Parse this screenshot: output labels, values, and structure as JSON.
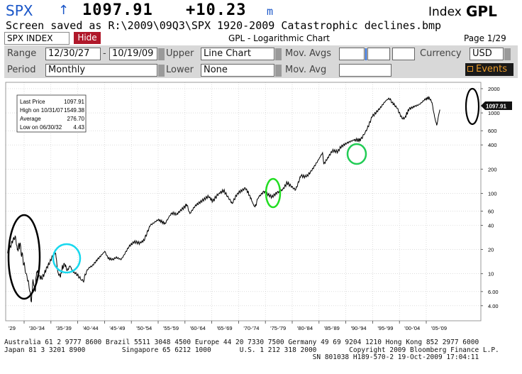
{
  "titlebar": {
    "ticker": "SPX",
    "arrow": "↑",
    "price": "1097.91",
    "change": "+10.23",
    "unit": "m",
    "index_label": "Index",
    "function": "GPL"
  },
  "save_line": "Screen saved as R:\\2009\\09Q3\\SPX 1920-2009 Catastrophic declines.bmp",
  "header": {
    "security": "SPX INDEX",
    "hide_label": "Hide",
    "title": "GPL - Logarithmic Chart",
    "page": "Page 1/29"
  },
  "controls": {
    "range_label": "Range",
    "range_start": "12/30/27",
    "range_sep": "-",
    "range_end": "10/19/09",
    "period_label": "Period",
    "period_value": "Monthly",
    "upper_label": "Upper",
    "upper_value": "Line Chart",
    "lower_label": "Lower",
    "lower_value": "None",
    "mov_avgs_label": "Mov. Avgs",
    "mov_avg_label": "Mov. Avg",
    "currency_label": "Currency",
    "currency_value": "USD",
    "events_label": "Events"
  },
  "stats": {
    "last_price_label": "Last Price",
    "last_price": "1097.91",
    "high_label": "High on  10/31/07",
    "high": "1549.38",
    "average_label": "Average",
    "average": "276.70",
    "low_label": "Low on  06/30/32",
    "low": "4.43"
  },
  "last_price_flag": "1097.91",
  "chart_data": {
    "type": "line",
    "title": "",
    "xlabel": "",
    "ylabel": "",
    "y_scale": "log",
    "ylim": [
      2.6,
      2400
    ],
    "y_ticks": [
      "2000",
      "1000",
      "600",
      "400",
      "200",
      "100",
      "60",
      "40",
      "20",
      "10",
      "6.00",
      "4.00"
    ],
    "x_ticks": [
      "'29",
      "'30-'34",
      "'35-'39",
      "'40-'44",
      "'45-'49",
      "'50-'54",
      "'55-'59",
      "'60-'64",
      "'65-'69",
      "'70-'74",
      "'75-'79",
      "'80-'84",
      "'85-'89",
      "'90-'94",
      "'95-'99",
      "'00-'04",
      "'05-'09"
    ],
    "series": [
      {
        "x": [
          1928.0,
          1929.0,
          1929.5,
          1929.83,
          1930.3,
          1930.9,
          1931.5,
          1932.0,
          1932.5,
          1932.8,
          1933.2,
          1933.5,
          1934.0,
          1934.5,
          1935.0,
          1935.5,
          1936.0,
          1936.5,
          1937.1,
          1937.5,
          1938.0,
          1938.3,
          1938.8,
          1939.3,
          1939.8,
          1940.4,
          1941.0,
          1941.6,
          1942.3,
          1943.0,
          1943.5,
          1944.0,
          1945.0,
          1946.4,
          1947.0,
          1948.0,
          1948.5,
          1949.5,
          1950.0,
          1951.0,
          1952.0,
          1953.0,
          1953.8,
          1955.0,
          1956.5,
          1957.8,
          1959.0,
          1960.0,
          1961.9,
          1962.5,
          1963.5,
          1966.0,
          1966.8,
          1968.0,
          1968.9,
          1970.5,
          1971.5,
          1973.0,
          1973.8,
          1974.6,
          1974.8,
          1975.5,
          1976.5,
          1978.0,
          1979.0,
          1980.0,
          1980.9,
          1982.5,
          1983.5,
          1984.5,
          1985.5,
          1986.5,
          1987.6,
          1987.85,
          1988.5,
          1989.5,
          1990.5,
          1991.0,
          1992.0,
          1993.5,
          1994.8,
          1996.0,
          1997.0,
          1998.5,
          1999.5,
          2000.2,
          2000.8,
          2001.7,
          2002.7,
          2003.2,
          2004.0,
          2005.0,
          2006.0,
          2007.0,
          2007.8,
          2008.3,
          2008.8,
          2009.2,
          2009.8
        ],
        "values": [
          18.0,
          26.0,
          29.0,
          20.0,
          23.0,
          15.0,
          10.0,
          7.5,
          4.43,
          8.5,
          6.0,
          10.5,
          9.5,
          8.5,
          10.5,
          12.0,
          14.0,
          16.5,
          18.0,
          10.5,
          9.0,
          12.0,
          13.0,
          11.0,
          12.5,
          10.5,
          10.0,
          9.0,
          8.0,
          11.0,
          12.0,
          12.5,
          15.0,
          19.0,
          15.5,
          15.0,
          16.0,
          15.0,
          17.0,
          22.0,
          25.0,
          24.0,
          26.0,
          40.0,
          47.0,
          42.0,
          57.0,
          55.0,
          72.0,
          56.0,
          70.0,
          92.0,
          80.0,
          100.0,
          108.0,
          75.0,
          100.0,
          116.0,
          95.0,
          70.0,
          68.0,
          90.0,
          105.0,
          90.0,
          102.0,
          110.0,
          135.0,
          110.0,
          165.0,
          160.0,
          190.0,
          240.0,
          320.0,
          230.0,
          270.0,
          340.0,
          330.0,
          375.0,
          415.0,
          460.0,
          460.0,
          620.0,
          900.0,
          1150.0,
          1400.0,
          1520.0,
          1350.0,
          1150.0,
          840.0,
          880.0,
          1120.0,
          1200.0,
          1280.0,
          1480.0,
          1549.38,
          1350.0,
          900.0,
          700.0,
          1097.91
        ]
      }
    ],
    "annotations": [
      {
        "label": "",
        "shape": "ellipse",
        "color": "#000000",
        "period": "1929-1932"
      },
      {
        "label": "",
        "shape": "ellipse",
        "color": "#18d8ee",
        "period": "1937-1938"
      },
      {
        "label": "",
        "shape": "ellipse",
        "color": "#22dd22",
        "period": "1973-1974"
      },
      {
        "label": "",
        "shape": "ellipse",
        "color": "#22cc55",
        "period": "1987"
      },
      {
        "label": "",
        "shape": "ellipse",
        "color": "#000000",
        "period": "2008-2009"
      }
    ],
    "grid": true,
    "line_color": "#000000"
  },
  "footer": {
    "line1": "Australia 61 2 9777 8600 Brazil 5511 3048 4500 Europe 44 20 7330 7500 Germany 49 69 9204 1210 Hong Kong 852 2977 6000",
    "line2": "Japan 81 3 3201 8900         Singapore 65 6212 1000       U.S. 1 212 318 2000        Copyright 2009 Bloomberg Finance L.P.",
    "line3": "                                                                            SN 801038 H189-570-2 19-Oct-2009 17:04:11"
  }
}
